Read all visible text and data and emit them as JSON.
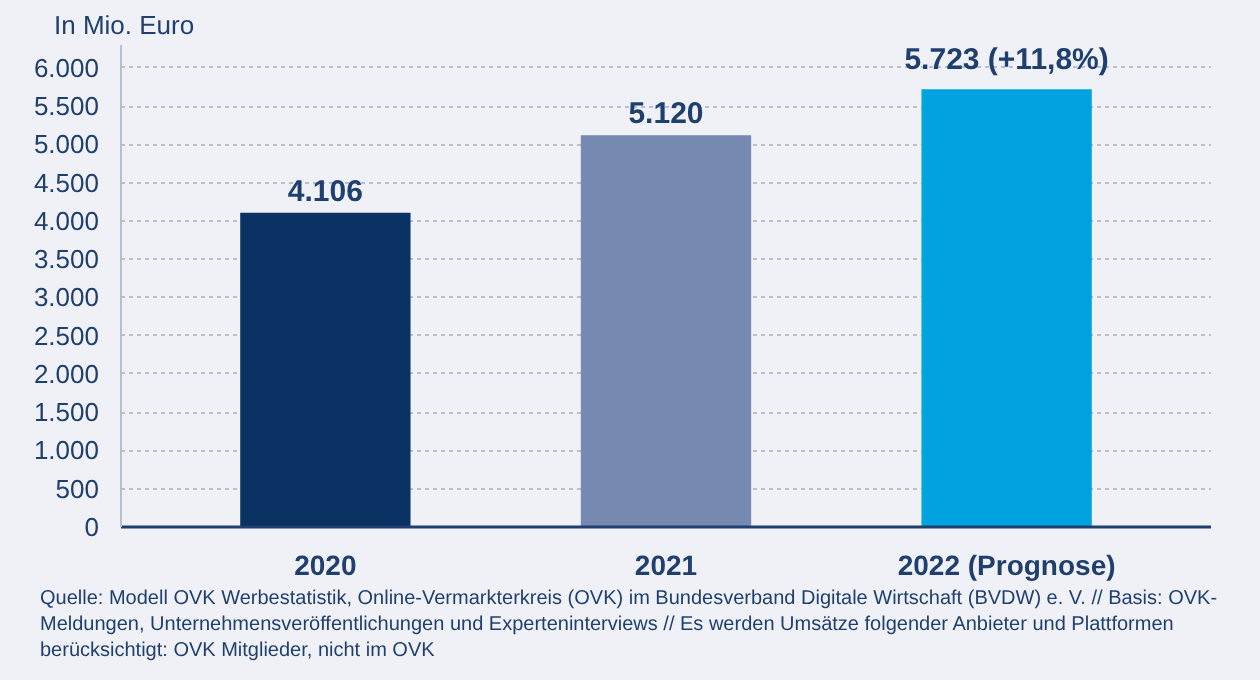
{
  "chart_data": {
    "type": "bar",
    "ylabel": "In Mio. Euro",
    "categories": [
      "2020",
      "2021",
      "2022 (Prognose)"
    ],
    "values": [
      4106,
      5120,
      5723
    ],
    "colors": [
      "#0a3364",
      "#7589b1",
      "#00a3e0"
    ],
    "value_labels": [
      "4.106",
      "5.120",
      "5.723 (+11,8%)"
    ],
    "ylim": [
      0,
      6300
    ],
    "yticks": [
      0,
      {
        "value": 500,
        "label": "500"
      },
      {
        "value": 1000,
        "label": "1.000"
      },
      {
        "value": 1500,
        "label": "1.500"
      },
      {
        "value": 2000,
        "label": "2.000"
      },
      {
        "value": 2500,
        "label": "2.500"
      },
      {
        "value": 3000,
        "label": "3.000"
      },
      {
        "value": 3500,
        "label": "3.500"
      },
      {
        "value": 4000,
        "label": "4.000"
      },
      {
        "value": 4500,
        "label": "4.500"
      },
      {
        "value": 5000,
        "label": "5.000"
      },
      {
        "value": 5500,
        "label": "5.500"
      },
      {
        "value": 6000,
        "label": "6.000"
      }
    ],
    "grid": "y",
    "annotations": [
      "Quelle: Modell OVK Werbestatistik, Online-Vermarkterkreis (OVK) im Bundesverband Digitale Wirtschaft (BVDW) e. V. // Basis: OVK-Meldungen, Unternehmensveröffentlichungen und Experteninterviews // Es werden Umsätze folgender Anbieter und Plattformen berücksichtigt: OVK Mitglieder, nicht im OVK"
    ]
  }
}
